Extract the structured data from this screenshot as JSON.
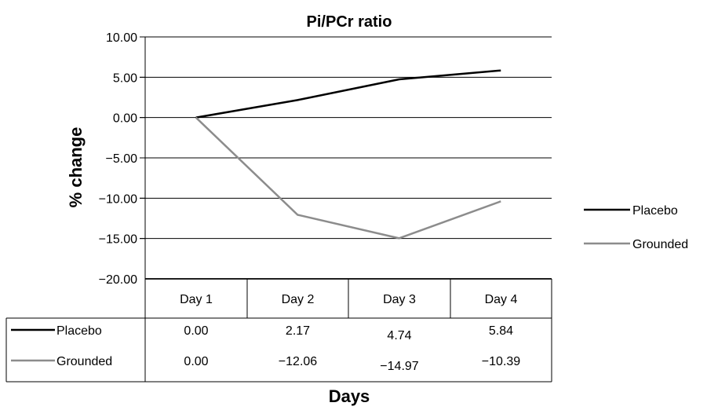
{
  "chart_data": {
    "type": "line",
    "title": "Pi/PCr ratio",
    "xlabel": "Days",
    "ylabel": "% change",
    "categories": [
      "Day 1",
      "Day 2",
      "Day 3",
      "Day 4"
    ],
    "ylim": [
      -20,
      10
    ],
    "yticks": [
      "10.00",
      "5.00",
      "0.00",
      "−5.00",
      "−10.00",
      "−15.00",
      "−20.00"
    ],
    "ytick_values": [
      10,
      5,
      0,
      -5,
      -10,
      -15,
      -20
    ],
    "grid": true,
    "legend_position": "right",
    "series": [
      {
        "name": "Placebo",
        "values": [
          0.0,
          2.17,
          4.74,
          5.84
        ],
        "labels": [
          "0.00",
          "2.17",
          "4.74",
          "5.84"
        ],
        "color": "#000000"
      },
      {
        "name": "Grounded",
        "values": [
          0.0,
          -12.06,
          -14.97,
          -10.39
        ],
        "labels": [
          "0.00",
          "−12.06",
          "−14.97",
          "−10.39"
        ],
        "color": "#8c8c8c"
      }
    ]
  }
}
